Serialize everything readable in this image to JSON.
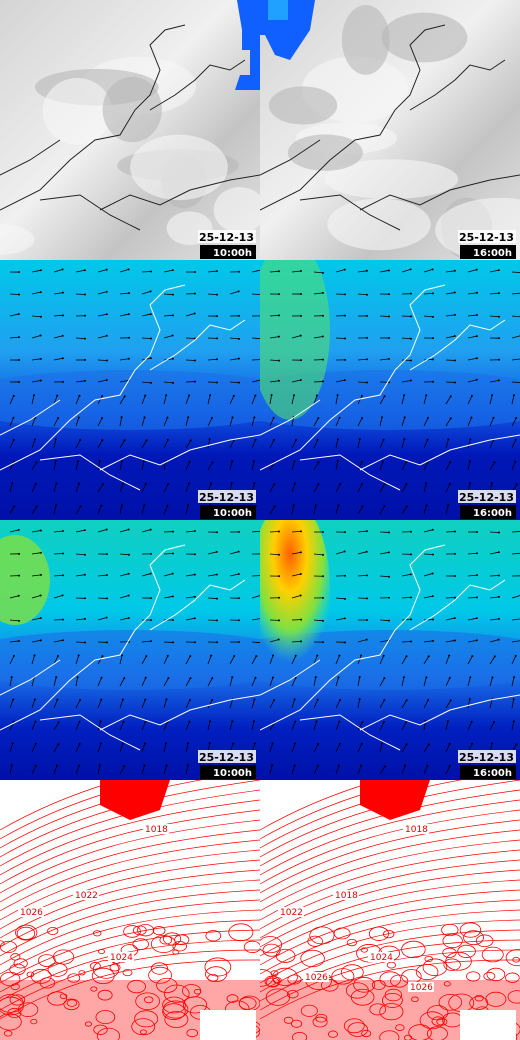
{
  "maps": [
    {
      "kind": "cloud",
      "panels": [
        {
          "date": "25-12-13",
          "time": "10:00h"
        },
        {
          "date": "25-12-13",
          "time": "16:00h"
        }
      ]
    },
    {
      "kind": "wind",
      "panels": [
        {
          "date": "25-12-13",
          "time": "10:00h"
        },
        {
          "date": "25-12-13",
          "time": "16:00h"
        }
      ]
    },
    {
      "kind": "gust",
      "panels": [
        {
          "date": "25-12-13",
          "time": "10:00h"
        },
        {
          "date": "25-12-13",
          "time": "16:00h"
        }
      ]
    },
    {
      "kind": "pressure",
      "panels": [
        {
          "isobar_labels": [
            "1018",
            "1022",
            "1026",
            "1024"
          ]
        },
        {
          "isobar_labels": [
            "1018",
            "1018",
            "1022",
            "1024",
            "1026",
            "1026"
          ]
        }
      ]
    }
  ]
}
